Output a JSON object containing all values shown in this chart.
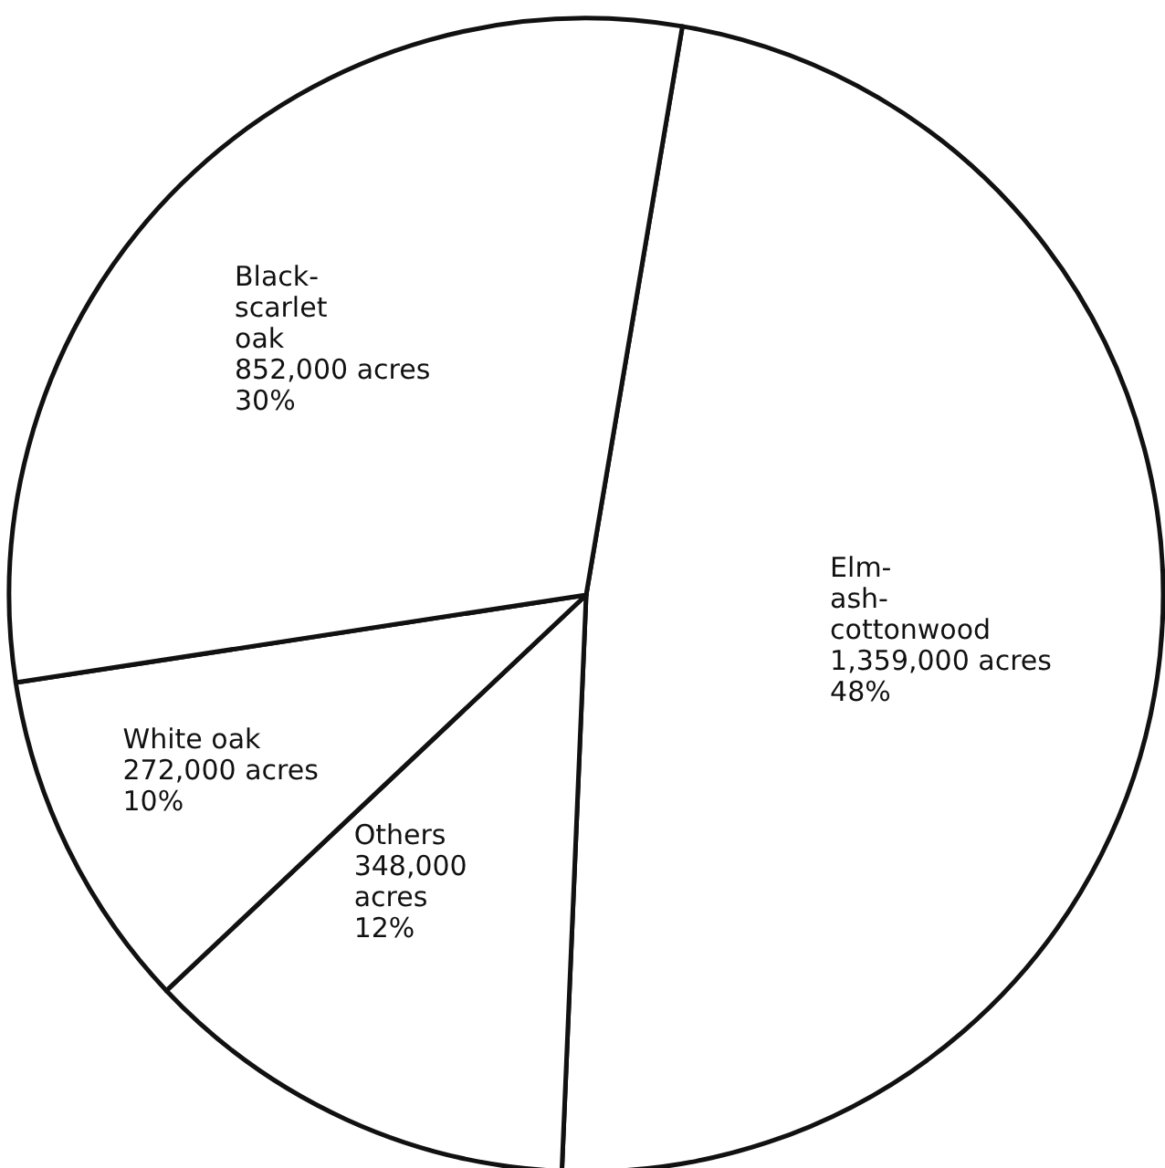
{
  "chart_data": {
    "type": "pie",
    "categories": [
      "Elm-\nash-\ncottonwood",
      "Others",
      "White oak",
      "Black-\nscarlet\noak"
    ],
    "values": [
      1359000,
      348000,
      272000,
      852000
    ],
    "value_labels": [
      "1,359,000 acres\n48%",
      "348,000\nacres\n12%",
      "272,000 acres\n10%",
      "852,000 acres\n30%"
    ],
    "colors": [
      "#ffffff",
      "#ffffff",
      "#ffffff",
      "#ffffff"
    ]
  }
}
